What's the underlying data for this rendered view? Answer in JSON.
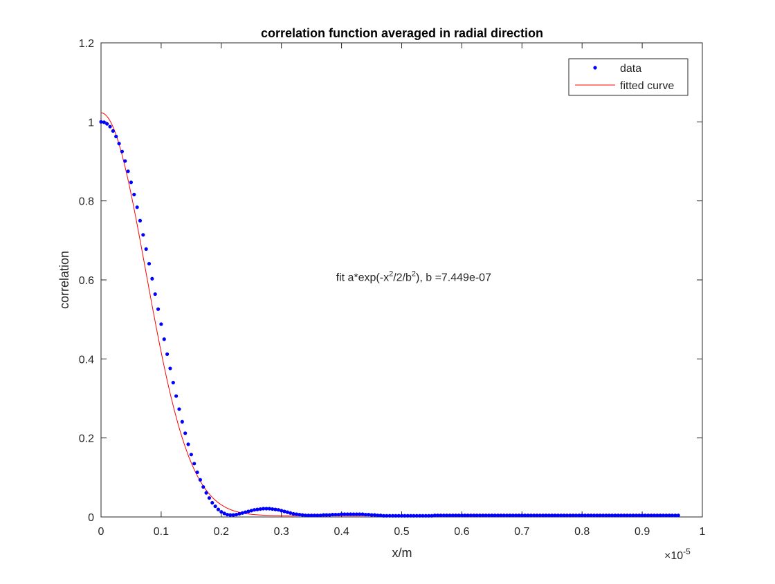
{
  "chart_data": {
    "type": "scatter",
    "title": "correlation function averaged in radial direction",
    "xlabel": "x/m",
    "ylabel": "correlation",
    "x_multiplier": "×10",
    "x_multiplier_exponent": "-5",
    "xlim": [
      0,
      1e-05
    ],
    "ylim": [
      0,
      1.2
    ],
    "x_ticks": [
      0,
      1e-06,
      2e-06,
      3e-06,
      4e-06,
      5e-06,
      6e-06,
      7e-06,
      8e-06,
      9e-06,
      1e-05
    ],
    "x_tick_labels": [
      "0",
      "0.1",
      "0.2",
      "0.3",
      "0.4",
      "0.5",
      "0.6",
      "0.7",
      "0.8",
      "0.9",
      "1"
    ],
    "y_ticks": [
      0,
      0.2,
      0.4,
      0.6,
      0.8,
      1.0,
      1.2
    ],
    "y_tick_labels": [
      "0",
      "0.2",
      "0.4",
      "0.6",
      "0.8",
      "1",
      "1.2"
    ],
    "grid": false,
    "legend_position": "top-right",
    "annotation": {
      "parts": [
        "fit a*exp(-x",
        "2",
        "/2/b",
        "2",
        "), b =7.449e-07"
      ],
      "x": 4e-06,
      "y": 0.59
    },
    "series": [
      {
        "name": "data",
        "style": "markers",
        "color": "#0000ff",
        "x_start": 0,
        "x_step": 5e-08,
        "y": [
          1.0,
          0.999,
          0.995,
          0.988,
          0.977,
          0.963,
          0.945,
          0.925,
          0.901,
          0.875,
          0.847,
          0.816,
          0.784,
          0.75,
          0.714,
          0.678,
          0.641,
          0.603,
          0.564,
          0.526,
          0.488,
          0.45,
          0.412,
          0.376,
          0.34,
          0.306,
          0.273,
          0.241,
          0.212,
          0.184,
          0.158,
          0.135,
          0.113,
          0.094,
          0.076,
          0.061,
          0.048,
          0.036,
          0.027,
          0.019,
          0.013,
          0.009,
          0.006,
          0.005,
          0.005,
          0.006,
          0.008,
          0.01,
          0.012,
          0.014,
          0.016,
          0.018,
          0.019,
          0.02,
          0.021,
          0.021,
          0.021,
          0.02,
          0.019,
          0.018,
          0.016,
          0.014,
          0.012,
          0.01,
          0.008,
          0.007,
          0.006,
          0.005,
          0.004,
          0.004,
          0.004,
          0.004,
          0.004,
          0.004,
          0.005,
          0.005,
          0.005,
          0.006,
          0.006,
          0.006,
          0.007,
          0.007,
          0.007,
          0.007,
          0.007,
          0.007,
          0.007,
          0.007,
          0.006,
          0.006,
          0.005,
          0.005,
          0.004,
          0.004,
          0.003,
          0.003,
          0.003,
          0.003,
          0.003,
          0.003,
          0.003,
          0.003,
          0.003,
          0.003,
          0.003,
          0.003,
          0.003,
          0.003,
          0.003,
          0.003,
          0.003,
          0.004,
          0.004,
          0.004,
          0.004,
          0.004,
          0.004,
          0.004,
          0.004,
          0.004,
          0.004,
          0.004,
          0.004,
          0.004,
          0.004,
          0.004,
          0.004,
          0.004,
          0.004,
          0.004,
          0.004,
          0.004,
          0.004,
          0.004,
          0.004,
          0.004,
          0.004,
          0.004,
          0.004,
          0.004,
          0.004,
          0.004,
          0.004,
          0.004,
          0.004,
          0.004,
          0.004,
          0.004,
          0.004,
          0.004,
          0.004,
          0.004,
          0.004,
          0.004,
          0.004,
          0.004,
          0.004,
          0.004,
          0.004,
          0.004,
          0.004,
          0.004,
          0.004,
          0.004,
          0.004,
          0.004,
          0.004,
          0.004,
          0.004,
          0.004,
          0.004,
          0.004,
          0.004,
          0.004,
          0.004,
          0.004,
          0.004,
          0.004,
          0.004,
          0.004,
          0.004,
          0.004,
          0.004,
          0.004,
          0.004,
          0.004,
          0.004,
          0.004,
          0.004,
          0.004,
          0.004,
          0.004,
          0.004
        ]
      },
      {
        "name": "fitted curve",
        "style": "line",
        "color": "#ff0000",
        "model": "a*exp(-x^2/2/b^2)+c",
        "a": 1.02,
        "b": 7.449e-07,
        "c": 0.003,
        "x_range": [
          0,
          9.5e-06
        ]
      }
    ]
  }
}
